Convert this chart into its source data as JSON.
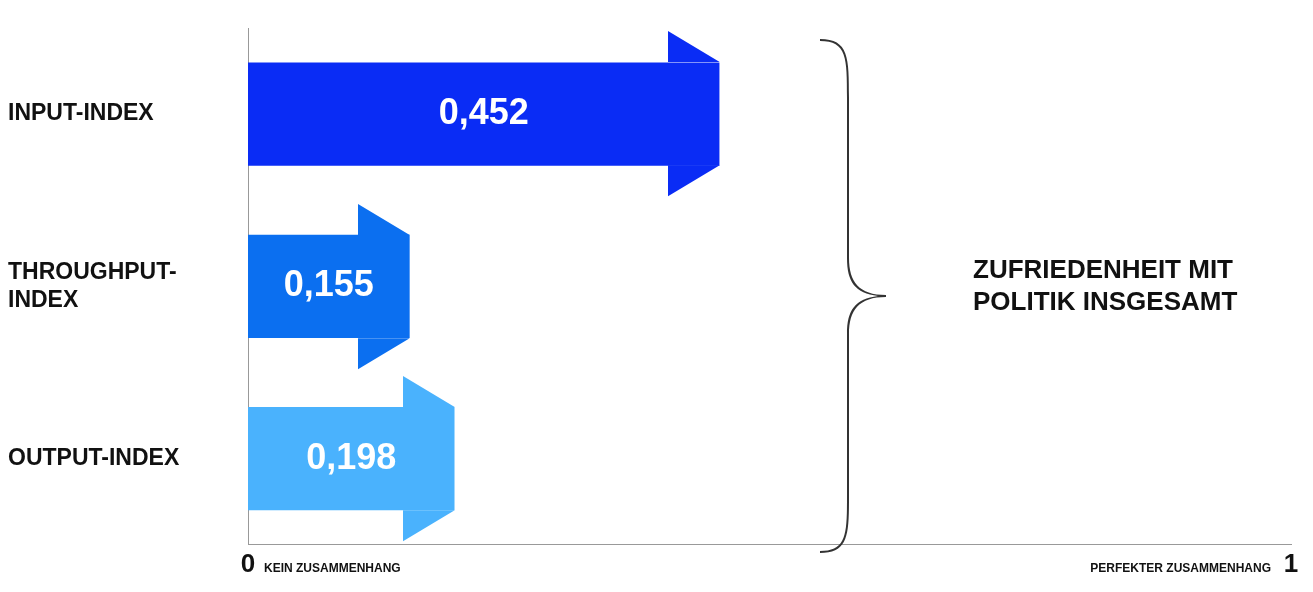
{
  "chart_data": {
    "type": "bar",
    "orientation": "horizontal",
    "categories": [
      "INPUT-INDEX",
      "THROUGHPUT-INDEX",
      "OUTPUT-INDEX"
    ],
    "values": [
      0.452,
      0.155,
      0.198
    ],
    "colors": [
      "#0a2cf5",
      "#0b6ff0",
      "#4ab2fd"
    ],
    "value_labels": [
      "0,452",
      "0,155",
      "0,198"
    ],
    "xlim": [
      0,
      1
    ],
    "xticks": [
      {
        "value": 0,
        "label": "0"
      },
      {
        "value": 1,
        "label": "1"
      }
    ],
    "grid": false,
    "legend": false,
    "annotations": [
      "KEIN ZUSAMMENHANG",
      "PERFEKTER ZUSAMMENHANG",
      "ZUFRIEDENHEIT MIT POLITIK INSGESAMT"
    ]
  }
}
